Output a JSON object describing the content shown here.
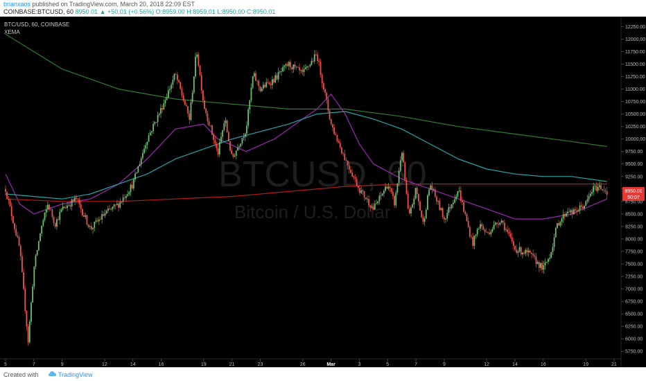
{
  "header": {
    "author": "brianxaos",
    "published": "published on TradingView.com, March 20, 2018 22:09 EST",
    "symbol": "COINBASE:BTCUSD, 60",
    "last": "8950.01",
    "change": "+50.01 (+0.56%)",
    "ohlc_o": "O:8959.00",
    "ohlc_h": "H:8959.01",
    "ohlc_l": "L:8950.00",
    "ohlc_c": "C:8950.01"
  },
  "legend": {
    "symbol": "BTC/USD, 60, COINBASE",
    "indicator": "XEMA"
  },
  "watermark": {
    "main": "BTCUSD, 60",
    "sub": "Bitcoin / U.S. Dollar"
  },
  "price_tag": {
    "price": "8950.01",
    "sub": "50:07"
  },
  "footer": {
    "created": "Created with",
    "brand": "TradingView"
  },
  "colors": {
    "background": "#000000",
    "up": "#6fbf73",
    "down": "#ef5350",
    "ma_purple": "#9c27b0",
    "ma_teal": "#26a6a6",
    "ma_green": "#2e7d32",
    "ma_red": "#b71c1c",
    "price_tag": "#e53935"
  },
  "chart_data": {
    "type": "candlestick",
    "ylim": [
      5600,
      12450
    ],
    "y_ticks": [
      "12250.00",
      "12000.00",
      "11750.00",
      "11500.00",
      "11250.00",
      "11000.00",
      "10750.00",
      "10500.00",
      "10250.00",
      "10000.00",
      "9750.00",
      "9500.00",
      "9250.00",
      "9000.00",
      "8750.00",
      "8500.00",
      "8250.00",
      "8000.00",
      "7750.00",
      "7500.00",
      "7250.00",
      "7000.00",
      "6750.00",
      "6500.00",
      "6250.00",
      "6000.00",
      "5750.00"
    ],
    "x_ticks": [
      "5",
      "7",
      "9",
      "12",
      "14",
      "16",
      "19",
      "21",
      "23",
      "26",
      "Mar",
      "3",
      "5",
      "7",
      "9",
      "12",
      "14",
      "16",
      "19",
      "21"
    ],
    "x_tick_index": [
      0,
      2,
      4,
      7,
      9,
      11,
      14,
      16,
      18,
      21,
      23,
      25,
      27,
      29,
      31,
      34,
      36,
      38,
      41,
      43
    ],
    "price_path": {
      "x": [
        0,
        1,
        1.6,
        2,
        2.5,
        3,
        3.5,
        4,
        5,
        6,
        7,
        8,
        9,
        10,
        11,
        12,
        13,
        13.5,
        14,
        15,
        15.5,
        16,
        17,
        17.5,
        18,
        19,
        20,
        21,
        22,
        23,
        24,
        25,
        26,
        27,
        27.5,
        28,
        28.5,
        29,
        29.5,
        30,
        31,
        32,
        33,
        33.5,
        34,
        35,
        36,
        37,
        38,
        38.5,
        39,
        39.8,
        40,
        41,
        41.5,
        42,
        42.5
      ],
      "y": [
        9000,
        7800,
        5950,
        7400,
        8200,
        8700,
        8300,
        8600,
        8800,
        8200,
        8500,
        8700,
        9100,
        10000,
        10600,
        11300,
        10400,
        11800,
        10700,
        9700,
        10400,
        9600,
        10200,
        11300,
        11000,
        11200,
        11500,
        11300,
        11700,
        10300,
        9600,
        9000,
        8600,
        9100,
        8700,
        9800,
        8400,
        9000,
        8300,
        9100,
        8400,
        9000,
        7900,
        8300,
        8100,
        8400,
        7800,
        7700,
        7400,
        7700,
        8300,
        8600,
        8500,
        8700,
        9000,
        9050,
        8950
      ]
    },
    "series": [
      {
        "name": "XEMA 1",
        "x": [
          0,
          1,
          2,
          3,
          4,
          6,
          8,
          10,
          12,
          14,
          15,
          17,
          19,
          21,
          22,
          23,
          24,
          25,
          26,
          28,
          30,
          32,
          34,
          36,
          38,
          40,
          42.5
        ],
        "values": [
          9300,
          8700,
          8500,
          8600,
          8700,
          8800,
          9100,
          9600,
          10200,
          10300,
          10000,
          9750,
          10000,
          10400,
          10600,
          10900,
          10500,
          9900,
          9500,
          9200,
          9000,
          8800,
          8600,
          8400,
          8400,
          8500,
          8800
        ]
      },
      {
        "name": "XEMA 2",
        "x": [
          0,
          2,
          4,
          6,
          8,
          10,
          12,
          14,
          16,
          18,
          20,
          22,
          24,
          26,
          28,
          30,
          32,
          34,
          36,
          38,
          40,
          42.5
        ],
        "values": [
          8900,
          8850,
          8800,
          8900,
          9100,
          9300,
          9600,
          9800,
          10000,
          10150,
          10300,
          10500,
          10550,
          10400,
          10200,
          9900,
          9600,
          9400,
          9300,
          9250,
          9250,
          9150
        ]
      },
      {
        "name": "XEMA 3",
        "x": [
          0,
          4,
          8,
          12,
          16,
          20,
          24,
          28,
          32,
          36,
          40,
          42.5
        ],
        "values": [
          12100,
          11400,
          11000,
          10800,
          10700,
          10600,
          10600,
          10450,
          10250,
          10100,
          9950,
          9850
        ]
      },
      {
        "name": "XEMA 4",
        "x": [
          0,
          4,
          8,
          12,
          16,
          20,
          24,
          28,
          32,
          36,
          40,
          42.5
        ],
        "values": [
          8800,
          8750,
          8750,
          8800,
          8850,
          8950,
          9050,
          9100,
          9100,
          9100,
          9100,
          9100
        ]
      }
    ]
  }
}
